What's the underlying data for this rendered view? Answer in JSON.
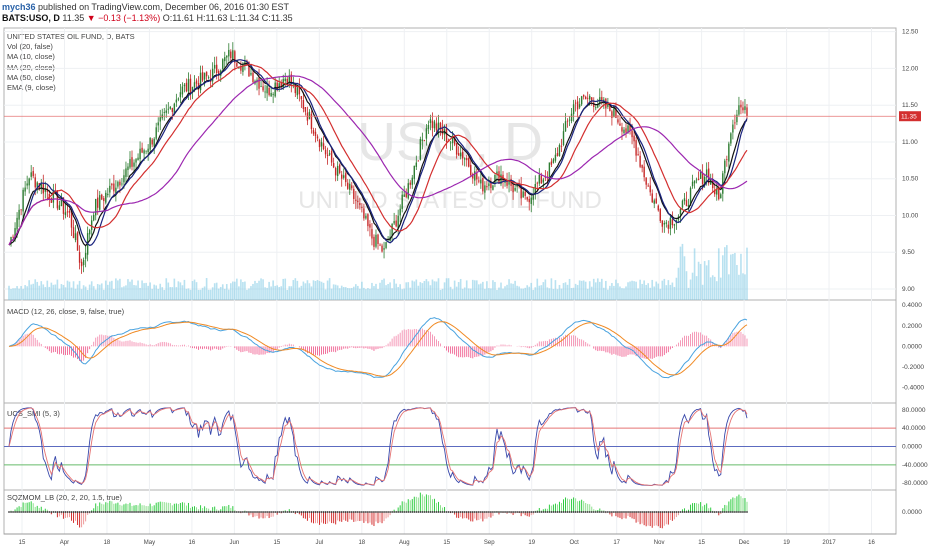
{
  "header": {
    "username": "mych36",
    "published": "published on TradingView.com, December 06, 2016 01:30 EST",
    "symbol": "BATS:USO, D",
    "price": "11.35",
    "change": "▼ −0.13 (−1.13%)",
    "ohlc": "O:11.61 H:11.63 L:11.34 C:11.35"
  },
  "chart_data": {
    "type": "candlestick",
    "symbol_title": "UNITED STATES OIL FUND, D, BATS",
    "watermark_symbol": "USO, D",
    "watermark_name": "UNITED STATES OIL FUND",
    "last_price_label": "11.35",
    "last_price": 11.35,
    "indicator_labels": [
      "Vol (20, false)",
      "MA (10, close)",
      "MA (20, close)",
      "MA (50, close)",
      "EMA (9, close)"
    ],
    "price_axis": {
      "min": 8.85,
      "max": 12.55,
      "ticks": [
        "12.50",
        "12.00",
        "11.50",
        "11.00",
        "10.50",
        "10.00",
        "9.50",
        "9.00"
      ]
    },
    "x_axis_labels": [
      "15",
      "Apr",
      "18",
      "May",
      "16",
      "Jun",
      "15",
      "Jul",
      "18",
      "Aug",
      "15",
      "Sep",
      "19",
      "Oct",
      "17",
      "Nov",
      "15",
      "Dec",
      "19",
      "2017",
      "16"
    ],
    "price_keypoints": [
      [
        0,
        9.6
      ],
      [
        10,
        10.55
      ],
      [
        20,
        10.3
      ],
      [
        30,
        10.0
      ],
      [
        36,
        9.3
      ],
      [
        42,
        10.1
      ],
      [
        55,
        10.5
      ],
      [
        70,
        11.0
      ],
      [
        85,
        11.7
      ],
      [
        100,
        11.9
      ],
      [
        110,
        12.2
      ],
      [
        118,
        12.0
      ],
      [
        128,
        11.7
      ],
      [
        138,
        11.9
      ],
      [
        146,
        11.5
      ],
      [
        158,
        10.8
      ],
      [
        172,
        10.2
      ],
      [
        180,
        9.7
      ],
      [
        186,
        9.5
      ],
      [
        198,
        10.4
      ],
      [
        208,
        11.3
      ],
      [
        216,
        11.1
      ],
      [
        226,
        10.8
      ],
      [
        234,
        10.4
      ],
      [
        244,
        10.55
      ],
      [
        256,
        10.2
      ],
      [
        270,
        10.7
      ],
      [
        280,
        11.5
      ],
      [
        288,
        11.6
      ],
      [
        300,
        11.4
      ],
      [
        310,
        11.0
      ],
      [
        318,
        10.3
      ],
      [
        325,
        9.9
      ],
      [
        332,
        10.0
      ],
      [
        340,
        10.4
      ],
      [
        346,
        10.6
      ],
      [
        352,
        10.2
      ],
      [
        358,
        11.2
      ],
      [
        362,
        11.5
      ],
      [
        366,
        11.35
      ]
    ],
    "volume_axis": [
      "9.00"
    ],
    "macd": {
      "label": "MACD (12, 26, close, 9, false, true)",
      "axis_ticks": [
        "0.4000",
        "0.2000",
        "0.0000",
        "-0.2000",
        "-0.4000"
      ],
      "range": [
        -0.55,
        0.45
      ]
    },
    "smi": {
      "label": "UCS_SMI (5, 3)",
      "axis_ticks": [
        "80.0000",
        "40.0000",
        "0.0000",
        "-40.0000",
        "-80.0000"
      ],
      "range": [
        -95,
        95
      ]
    },
    "squeeze": {
      "label": "SQZMOM_LB (20, 2, 20, 1.5, true)",
      "axis_ticks": [
        "0.0000"
      ]
    }
  },
  "colors": {
    "up": "#2e7d32",
    "down": "#c62828",
    "ma10": "#111111",
    "ma20": "#1a237e",
    "ma50": "#d32f2f",
    "ema9": "#9c27b0",
    "macd": "#4aa3df",
    "signal": "#f08a24",
    "volume": "#7ec8e3"
  }
}
